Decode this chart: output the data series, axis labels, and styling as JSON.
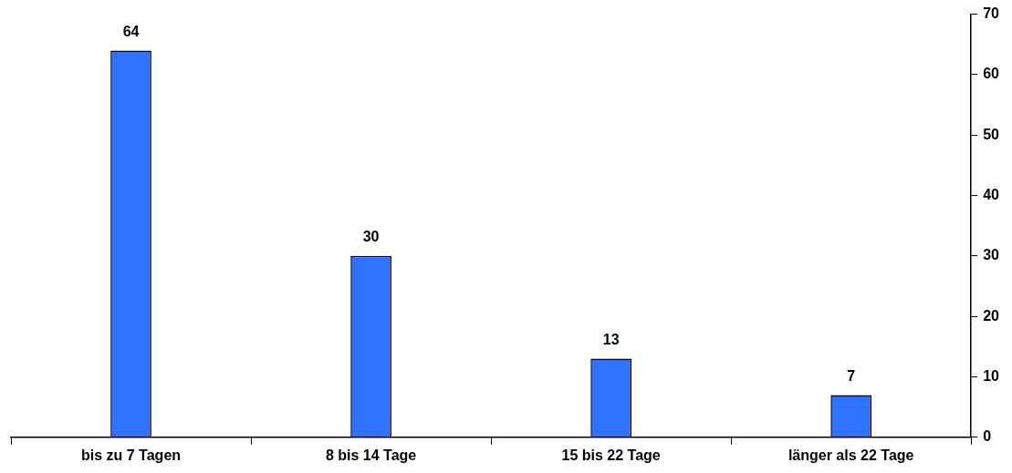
{
  "chart_data": {
    "type": "bar",
    "categories": [
      "bis zu 7 Tagen",
      "8 bis 14 Tage",
      "15 bis 22 Tage",
      "länger als 22 Tage"
    ],
    "values": [
      64,
      30,
      13,
      7
    ],
    "color": "#2f72ff",
    "ylim": [
      0,
      70
    ],
    "yticks": [
      0,
      10,
      20,
      30,
      40,
      50,
      60,
      70
    ],
    "grid": false,
    "legend": false,
    "data_labels": true
  }
}
